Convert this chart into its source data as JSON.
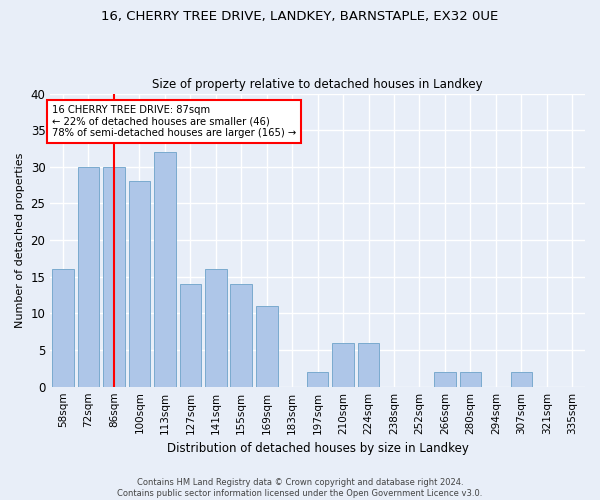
{
  "title_line1": "16, CHERRY TREE DRIVE, LANDKEY, BARNSTAPLE, EX32 0UE",
  "title_line2": "Size of property relative to detached houses in Landkey",
  "xlabel": "Distribution of detached houses by size in Landkey",
  "ylabel": "Number of detached properties",
  "categories": [
    "58sqm",
    "72sqm",
    "86sqm",
    "100sqm",
    "113sqm",
    "127sqm",
    "141sqm",
    "155sqm",
    "169sqm",
    "183sqm",
    "197sqm",
    "210sqm",
    "224sqm",
    "238sqm",
    "252sqm",
    "266sqm",
    "280sqm",
    "294sqm",
    "307sqm",
    "321sqm",
    "335sqm"
  ],
  "values": [
    16,
    30,
    30,
    28,
    32,
    14,
    16,
    14,
    11,
    0,
    2,
    6,
    6,
    0,
    0,
    2,
    2,
    0,
    2,
    0,
    0
  ],
  "bar_color": "#aec6e8",
  "bar_edge_color": "#7aaace",
  "property_line_x": 2,
  "annotation_title": "16 CHERRY TREE DRIVE: 87sqm",
  "annotation_line1": "← 22% of detached houses are smaller (46)",
  "annotation_line2": "78% of semi-detached houses are larger (165) →",
  "annotation_box_color": "white",
  "annotation_box_edge_color": "red",
  "vline_color": "red",
  "ylim": [
    0,
    40
  ],
  "yticks": [
    0,
    5,
    10,
    15,
    20,
    25,
    30,
    35,
    40
  ],
  "footer_line1": "Contains HM Land Registry data © Crown copyright and database right 2024.",
  "footer_line2": "Contains public sector information licensed under the Open Government Licence v3.0.",
  "background_color": "#e8eef8",
  "grid_color": "white"
}
